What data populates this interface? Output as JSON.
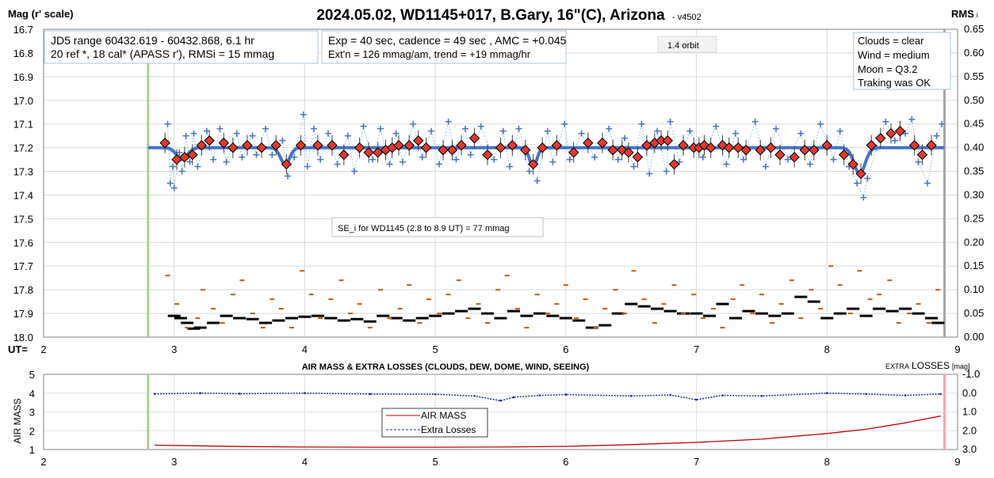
{
  "header": {
    "title": "2024.05.02, WD1145+017, B.Gary, 16\"(C), Arizona",
    "version": "- v4502",
    "left_axis_label": "Mag (r' scale)",
    "right_axis_label": "RMS",
    "right_axis_suffix": "i",
    "ut_label": "UT="
  },
  "info": {
    "jd_line1": "JD5 range 60432.619 - 60432.868, 6.1 hr",
    "jd_line2": "20 ref *, 18 cal*  (APASS r'), RMSi = 15 mmag",
    "exp_line1": "Exp = 40 sec, cadence = 49 sec , AMC = +0.045",
    "exp_line2": "Ext'n = 126 mmag/am, trend = +19 mmag/hr",
    "orbit": "1.4 orbit",
    "clouds": "Clouds = clear",
    "wind": "Wind    = medium",
    "moon": "Moon    = Q3.2",
    "tracking": "Traking was OK",
    "se_note": "SE_i for WD1145 (2.8 to 8.9 UT) = 77 mmag"
  },
  "lower": {
    "title": "AIR MASS & EXTRA LOSSES (CLOUDS, DEW, DOME, WIND, SEEING)",
    "right_label_small": "EXTRA",
    "right_label_big": "LOSSES",
    "right_label_unit": "[mag]",
    "left_label": "AIR MASS",
    "legend_airmass": "AIR MASS",
    "legend_losses": "Extra Losses"
  },
  "colors": {
    "model": "#4472c4",
    "raw": "#4472c4",
    "binned_fill": "#e03a2f",
    "rms_ref": "#000000",
    "rms_target": "#c55a11",
    "airmass": "#c00000",
    "losses": "#1f2d9c",
    "start_line": "#a9d18e",
    "end_line": "#f4a7a7"
  },
  "chart_data": [
    {
      "type": "scatter",
      "name": "light-curve",
      "xlabel": "UT=",
      "ylabel": "Mag (r' scale)",
      "y2label": "RMS i",
      "xlim": [
        2,
        9
      ],
      "ylim": [
        18.0,
        16.7
      ],
      "y2lim": [
        0.0,
        0.65
      ],
      "x_ticks": [
        2,
        3,
        4,
        5,
        6,
        7,
        8,
        9
      ],
      "y_ticks": [
        16.7,
        16.8,
        16.9,
        17.0,
        17.1,
        17.2,
        17.3,
        17.4,
        17.5,
        17.6,
        17.7,
        17.8,
        17.9,
        18.0
      ],
      "y2_ticks": [
        0.65,
        0.6,
        0.55,
        0.5,
        0.45,
        0.4,
        0.35,
        0.3,
        0.25,
        0.2,
        0.15,
        0.1,
        0.05,
        0.0
      ],
      "grid": true,
      "start_ut": 2.8,
      "end_ut": 8.9,
      "model_baseline": 17.2,
      "model_dips": [
        {
          "ut": 3.06,
          "depth": 0.05,
          "width": 0.06
        },
        {
          "ut": 3.85,
          "depth": 0.07,
          "width": 0.05
        },
        {
          "ut": 5.75,
          "depth": 0.08,
          "width": 0.04
        },
        {
          "ut": 8.25,
          "depth": 0.11,
          "width": 0.06
        }
      ],
      "binned": {
        "x": [
          2.93,
          3.02,
          3.08,
          3.14,
          3.21,
          3.27,
          3.38,
          3.45,
          3.56,
          3.67,
          3.78,
          3.86,
          3.97,
          4.1,
          4.21,
          4.3,
          4.42,
          4.49,
          4.56,
          4.62,
          4.67,
          4.72,
          4.8,
          4.87,
          4.93,
          5.06,
          5.13,
          5.2,
          5.3,
          5.4,
          5.5,
          5.59,
          5.69,
          5.75,
          5.82,
          5.93,
          6.06,
          6.17,
          6.28,
          6.36,
          6.43,
          6.48,
          6.55,
          6.62,
          6.68,
          6.73,
          6.78,
          6.83,
          6.9,
          6.98,
          7.02,
          7.06,
          7.11,
          7.2,
          7.25,
          7.32,
          7.38,
          7.49,
          7.57,
          7.64,
          7.75,
          7.83,
          7.9,
          8.0,
          8.13,
          8.2,
          8.26,
          8.34,
          8.41,
          8.49,
          8.56,
          8.67,
          8.73,
          8.8
        ],
        "y": [
          17.18,
          17.25,
          17.24,
          17.23,
          17.19,
          17.17,
          17.18,
          17.2,
          17.19,
          17.2,
          17.19,
          17.27,
          17.19,
          17.19,
          17.19,
          17.23,
          17.2,
          17.22,
          17.22,
          17.21,
          17.2,
          17.19,
          17.19,
          17.17,
          17.2,
          17.21,
          17.21,
          17.19,
          17.16,
          17.23,
          17.2,
          17.19,
          17.21,
          17.27,
          17.2,
          17.19,
          17.22,
          17.18,
          17.18,
          17.21,
          17.21,
          17.22,
          17.24,
          17.19,
          17.18,
          17.17,
          17.17,
          17.27,
          17.19,
          17.2,
          17.2,
          17.19,
          17.2,
          17.19,
          17.2,
          17.2,
          17.21,
          17.21,
          17.2,
          17.23,
          17.24,
          17.21,
          17.21,
          17.19,
          17.23,
          17.27,
          17.31,
          17.19,
          17.16,
          17.14,
          17.13,
          17.19,
          17.23,
          17.19
        ]
      },
      "raw_points": {
        "x": [
          2.95,
          2.97,
          2.99,
          3.0,
          3.04,
          3.06,
          3.09,
          3.12,
          3.15,
          3.18,
          3.25,
          3.3,
          3.35,
          3.4,
          3.48,
          3.52,
          3.6,
          3.63,
          3.7,
          3.75,
          3.83,
          3.87,
          3.92,
          3.99,
          4.02,
          4.07,
          4.12,
          4.18,
          4.25,
          4.33,
          4.38,
          4.45,
          4.52,
          4.58,
          4.65,
          4.7,
          4.75,
          4.83,
          4.9,
          4.97,
          5.03,
          5.1,
          5.16,
          5.23,
          5.27,
          5.35,
          5.45,
          5.52,
          5.57,
          5.64,
          5.72,
          5.78,
          5.86,
          5.9,
          5.99,
          6.03,
          6.12,
          6.22,
          6.33,
          6.4,
          6.45,
          6.52,
          6.58,
          6.64,
          6.7,
          6.77,
          6.8,
          6.87,
          6.95,
          7.05,
          7.15,
          7.23,
          7.3,
          7.36,
          7.45,
          7.53,
          7.61,
          7.7,
          7.8,
          7.87,
          7.95,
          8.05,
          8.1,
          8.17,
          8.23,
          8.28,
          8.31,
          8.38,
          8.45,
          8.52,
          8.6,
          8.65,
          8.7,
          8.77,
          8.84,
          8.88
        ],
        "y": [
          17.1,
          17.35,
          17.28,
          17.37,
          17.22,
          17.3,
          17.15,
          17.26,
          17.14,
          17.28,
          17.13,
          17.25,
          17.12,
          17.26,
          17.14,
          17.24,
          17.15,
          17.23,
          17.12,
          17.23,
          17.17,
          17.32,
          17.24,
          17.06,
          17.28,
          17.12,
          17.25,
          17.14,
          17.27,
          17.15,
          17.3,
          17.11,
          17.25,
          17.12,
          17.27,
          17.14,
          17.26,
          17.1,
          17.24,
          17.13,
          17.27,
          17.09,
          17.25,
          17.12,
          17.23,
          17.11,
          17.25,
          17.13,
          17.28,
          17.12,
          17.3,
          17.34,
          17.13,
          17.26,
          17.1,
          17.25,
          17.14,
          17.24,
          17.12,
          17.25,
          17.16,
          17.28,
          17.1,
          17.31,
          17.13,
          17.3,
          17.09,
          17.26,
          17.13,
          17.24,
          17.11,
          17.27,
          17.14,
          17.25,
          17.09,
          17.28,
          17.12,
          17.25,
          17.14,
          17.27,
          17.1,
          17.25,
          17.13,
          17.28,
          17.35,
          17.41,
          17.33,
          17.2,
          17.09,
          17.17,
          17.14,
          17.08,
          17.26,
          17.35,
          17.15,
          17.1
        ]
      },
      "rms_ref": {
        "x": [
          3.0,
          3.05,
          3.1,
          3.15,
          3.2,
          3.3,
          3.4,
          3.5,
          3.6,
          3.7,
          3.8,
          3.9,
          4.0,
          4.1,
          4.2,
          4.3,
          4.4,
          4.5,
          4.6,
          4.7,
          4.8,
          4.9,
          5.0,
          5.1,
          5.2,
          5.3,
          5.4,
          5.5,
          5.6,
          5.7,
          5.8,
          5.9,
          6.0,
          6.1,
          6.2,
          6.3,
          6.4,
          6.5,
          6.6,
          6.7,
          6.8,
          6.9,
          7.0,
          7.1,
          7.2,
          7.3,
          7.4,
          7.5,
          7.6,
          7.7,
          7.8,
          7.9,
          8.0,
          8.1,
          8.2,
          8.3,
          8.4,
          8.5,
          8.6,
          8.7,
          8.8,
          8.85
        ],
        "y": [
          0.045,
          0.04,
          0.03,
          0.018,
          0.02,
          0.03,
          0.045,
          0.04,
          0.038,
          0.03,
          0.035,
          0.04,
          0.043,
          0.045,
          0.04,
          0.035,
          0.038,
          0.033,
          0.045,
          0.04,
          0.035,
          0.04,
          0.045,
          0.05,
          0.055,
          0.06,
          0.05,
          0.04,
          0.055,
          0.045,
          0.05,
          0.045,
          0.04,
          0.035,
          0.02,
          0.025,
          0.05,
          0.07,
          0.065,
          0.06,
          0.055,
          0.05,
          0.05,
          0.045,
          0.07,
          0.04,
          0.055,
          0.05,
          0.045,
          0.05,
          0.085,
          0.075,
          0.04,
          0.05,
          0.06,
          0.045,
          0.06,
          0.055,
          0.06,
          0.05,
          0.04,
          0.03
        ]
      },
      "rms_target": {
        "x": [
          2.95,
          3.02,
          3.1,
          3.18,
          3.22,
          3.3,
          3.37,
          3.45,
          3.52,
          3.6,
          3.68,
          3.75,
          3.82,
          3.9,
          3.98,
          4.05,
          4.12,
          4.2,
          4.28,
          4.35,
          4.42,
          4.5,
          4.58,
          4.65,
          4.73,
          4.8,
          4.88,
          4.95,
          5.03,
          5.1,
          5.18,
          5.25,
          5.33,
          5.4,
          5.48,
          5.55,
          5.63,
          5.7,
          5.78,
          5.86,
          5.93,
          6.0,
          6.08,
          6.15,
          6.23,
          6.3,
          6.38,
          6.45,
          6.52,
          6.6,
          6.68,
          6.75,
          6.83,
          6.9,
          6.98,
          7.05,
          7.13,
          7.2,
          7.28,
          7.35,
          7.43,
          7.5,
          7.58,
          7.65,
          7.73,
          7.8,
          7.88,
          7.95,
          8.03,
          8.1,
          8.18,
          8.25,
          8.33,
          8.4,
          8.48,
          8.55,
          8.63,
          8.7,
          8.78,
          8.85
        ],
        "y": [
          0.13,
          0.07,
          0.02,
          0.04,
          0.1,
          0.06,
          0.03,
          0.09,
          0.12,
          0.05,
          0.02,
          0.08,
          0.06,
          0.02,
          0.14,
          0.09,
          0.04,
          0.08,
          0.12,
          0.05,
          0.07,
          0.02,
          0.1,
          0.04,
          0.06,
          0.11,
          0.03,
          0.08,
          0.05,
          0.09,
          0.12,
          0.04,
          0.07,
          0.03,
          0.1,
          0.13,
          0.06,
          0.02,
          0.09,
          0.05,
          0.07,
          0.11,
          0.04,
          0.08,
          0.02,
          0.06,
          0.1,
          0.05,
          0.14,
          0.08,
          0.03,
          0.07,
          0.11,
          0.05,
          0.09,
          0.04,
          0.06,
          0.02,
          0.08,
          0.11,
          0.05,
          0.09,
          0.03,
          0.07,
          0.12,
          0.04,
          0.1,
          0.06,
          0.15,
          0.11,
          0.05,
          0.14,
          0.08,
          0.09,
          0.12,
          0.03,
          0.05,
          0.07,
          0.03,
          0.1
        ]
      }
    },
    {
      "type": "line",
      "name": "air-mass-extra-losses",
      "title": "AIR MASS & EXTRA LOSSES (CLOUDS, DEW, DOME, WIND, SEEING)",
      "xlim": [
        2,
        9
      ],
      "ylim": [
        1,
        5
      ],
      "y2lim": [
        -1.0,
        3.0
      ],
      "x_ticks": [
        2,
        3,
        4,
        5,
        6,
        7,
        8,
        9
      ],
      "y_ticks": [
        1,
        2,
        3,
        4,
        5
      ],
      "y2_ticks": [
        "-1.0",
        "0.0",
        "1.0",
        "2.0",
        "3.0"
      ],
      "legend": [
        "AIR MASS",
        "Extra Losses"
      ],
      "legend_placement": "bottom-center",
      "series": [
        {
          "name": "AIR MASS",
          "x": [
            2.85,
            3.5,
            4.0,
            4.5,
            5.0,
            5.5,
            6.0,
            6.5,
            7.0,
            7.5,
            8.0,
            8.3,
            8.6,
            8.87
          ],
          "y": [
            1.23,
            1.16,
            1.13,
            1.12,
            1.12,
            1.13,
            1.17,
            1.26,
            1.38,
            1.55,
            1.85,
            2.08,
            2.42,
            2.78
          ]
        },
        {
          "name": "Extra Losses",
          "x": [
            2.85,
            3.2,
            3.5,
            4.0,
            4.5,
            5.0,
            5.3,
            5.5,
            5.6,
            5.8,
            6.0,
            6.5,
            6.8,
            7.0,
            7.2,
            7.5,
            8.0,
            8.3,
            8.6,
            8.87
          ],
          "y": [
            0.04,
            0.0,
            0.03,
            0.0,
            0.05,
            0.06,
            0.15,
            0.4,
            0.22,
            0.12,
            0.08,
            0.15,
            0.1,
            0.35,
            0.12,
            0.15,
            0.0,
            0.05,
            0.12,
            0.05
          ]
        }
      ]
    }
  ]
}
